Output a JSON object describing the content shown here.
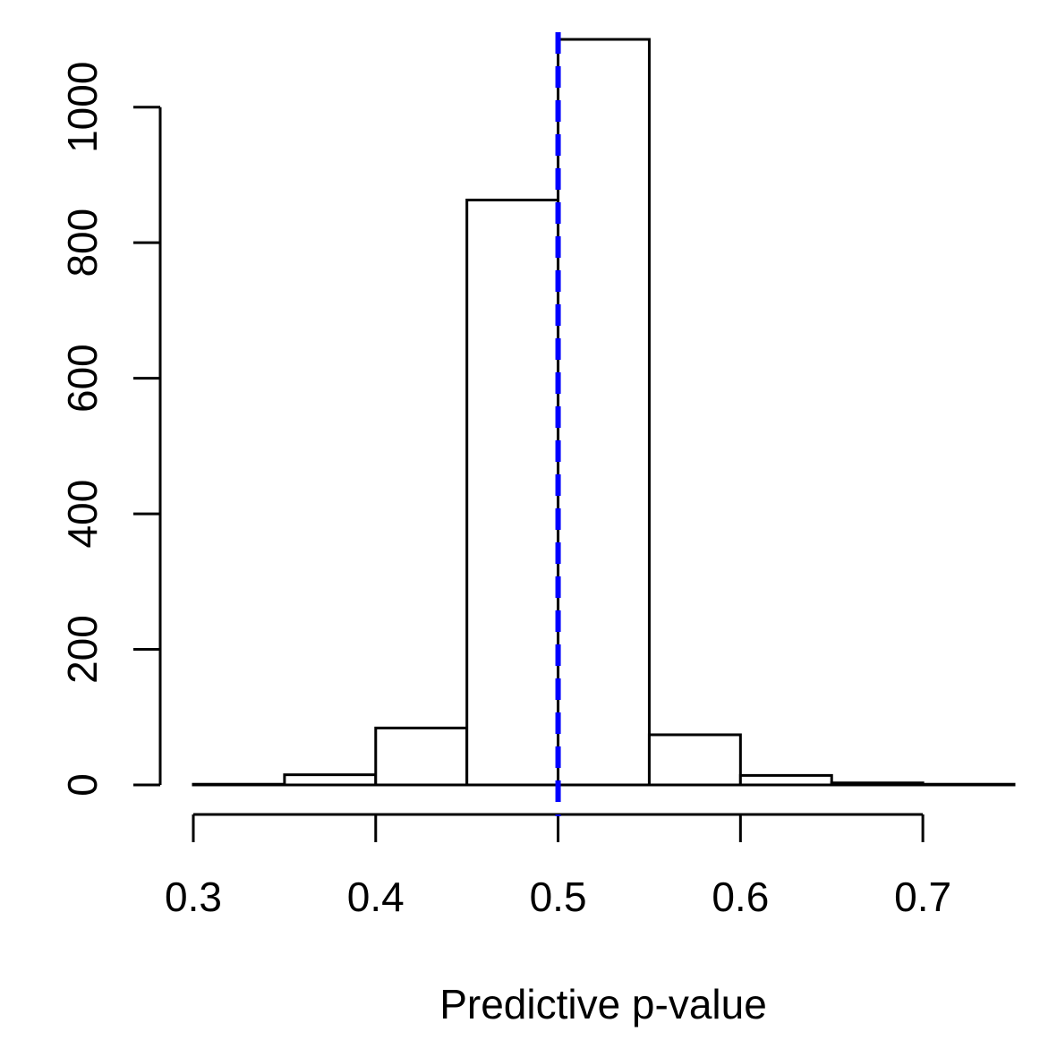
{
  "chart_data": {
    "type": "bar",
    "subtype": "histogram",
    "title": "",
    "xlabel": "Predictive p-value",
    "ylabel": "",
    "bins": [
      {
        "x0": 0.3,
        "x1": 0.35,
        "count": 1
      },
      {
        "x0": 0.35,
        "x1": 0.4,
        "count": 15
      },
      {
        "x0": 0.4,
        "x1": 0.45,
        "count": 84
      },
      {
        "x0": 0.45,
        "x1": 0.5,
        "count": 863
      },
      {
        "x0": 0.5,
        "x1": 0.55,
        "count": 1100
      },
      {
        "x0": 0.55,
        "x1": 0.6,
        "count": 74
      },
      {
        "x0": 0.6,
        "x1": 0.65,
        "count": 14
      },
      {
        "x0": 0.65,
        "x1": 0.7,
        "count": 3
      },
      {
        "x0": 0.7,
        "x1": 0.75,
        "count": 1
      }
    ],
    "x_ticks": [
      0.3,
      0.4,
      0.5,
      0.6,
      0.7
    ],
    "x_tick_labels": [
      "0.3",
      "0.4",
      "0.5",
      "0.6",
      "0.7"
    ],
    "y_ticks": [
      0,
      200,
      400,
      600,
      800,
      1000
    ],
    "y_tick_labels": [
      "0",
      "200",
      "400",
      "600",
      "800",
      "1000"
    ],
    "xlim": [
      0.3,
      0.75
    ],
    "ylim": [
      0,
      1100
    ],
    "reference_line": {
      "x": 0.5,
      "color": "#0000ff",
      "style": "dashed"
    },
    "bar_fill": "#ffffff",
    "bar_stroke": "#000000",
    "grid": false,
    "legend": "none"
  }
}
